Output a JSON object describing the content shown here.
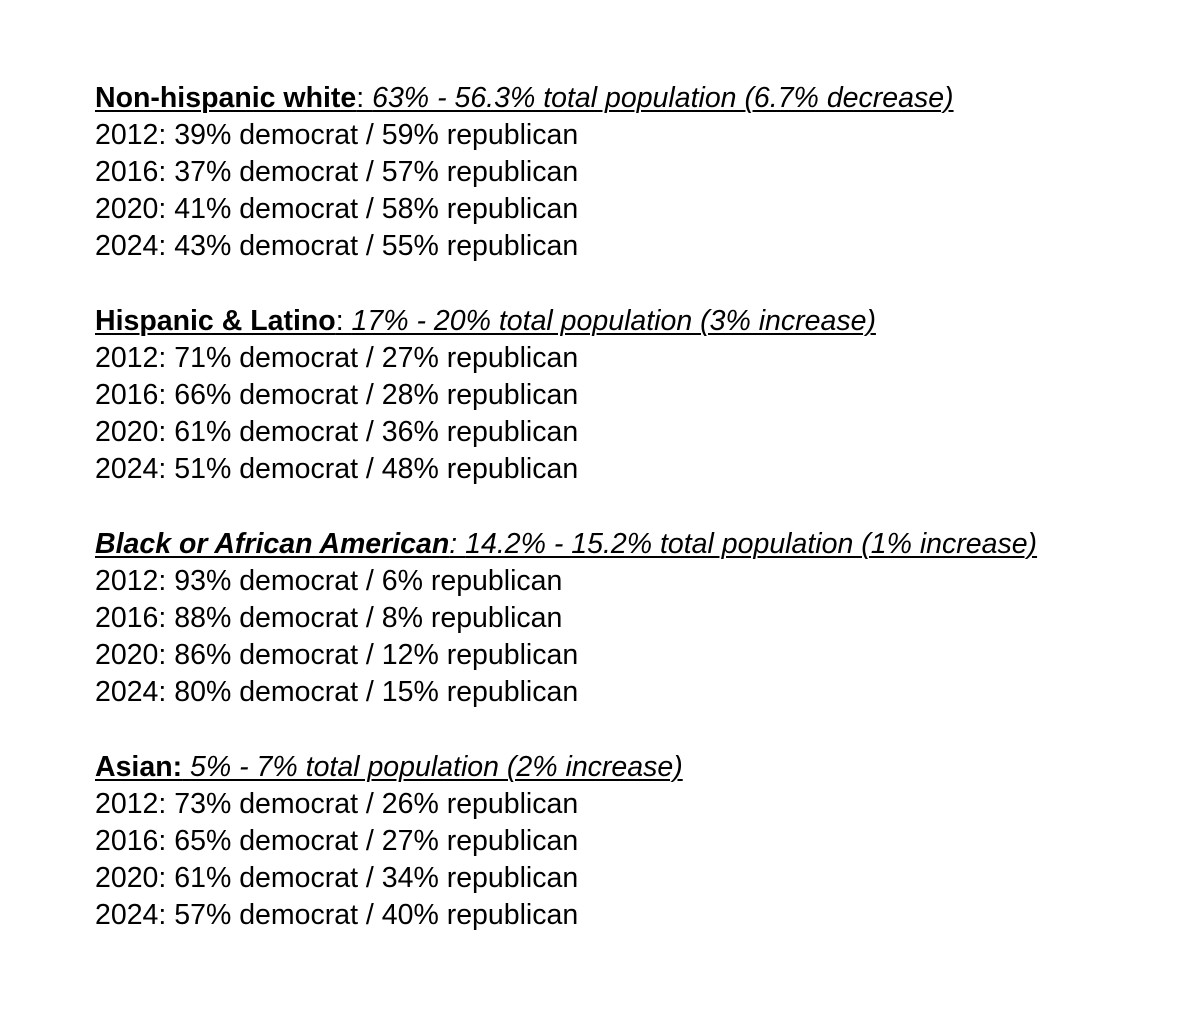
{
  "document": {
    "sections": [
      {
        "name": "Non-hispanic white",
        "separator": ": ",
        "detail": "63% - 56.3% total population (6.7% decrease)",
        "rows": [
          "2012: 39% democrat / 59% republican",
          "2016: 37% democrat / 57% republican",
          "2020: 41% democrat / 58% republican",
          "2024: 43% democrat / 55% republican"
        ]
      },
      {
        "name": "Hispanic & Latino",
        "separator": ": ",
        "detail": "17% - 20% total population (3% increase)",
        "rows": [
          "2012: 71% democrat / 27% republican",
          "2016: 66% democrat / 28% republican",
          "2020: 61% democrat / 36% republican",
          "2024: 51% democrat / 48% republican"
        ]
      },
      {
        "name": "Black or African American",
        "separator": ": ",
        "detail": "14.2% - 15.2% total population (1% increase)",
        "rows": [
          "2012: 93% democrat / 6% republican",
          "2016: 88% democrat / 8% republican",
          "2020: 86% democrat / 12% republican",
          "2024: 80% democrat / 15% republican"
        ]
      },
      {
        "name": "Asian:",
        "separator": " ",
        "detail": "5% - 7% total population (2% increase)",
        "rows": [
          "2012: 73% democrat / 26% republican",
          "2016: 65% democrat / 27% republican",
          "2020: 61% democrat / 34% republican",
          "2024: 57% democrat / 40% republican"
        ]
      }
    ]
  }
}
